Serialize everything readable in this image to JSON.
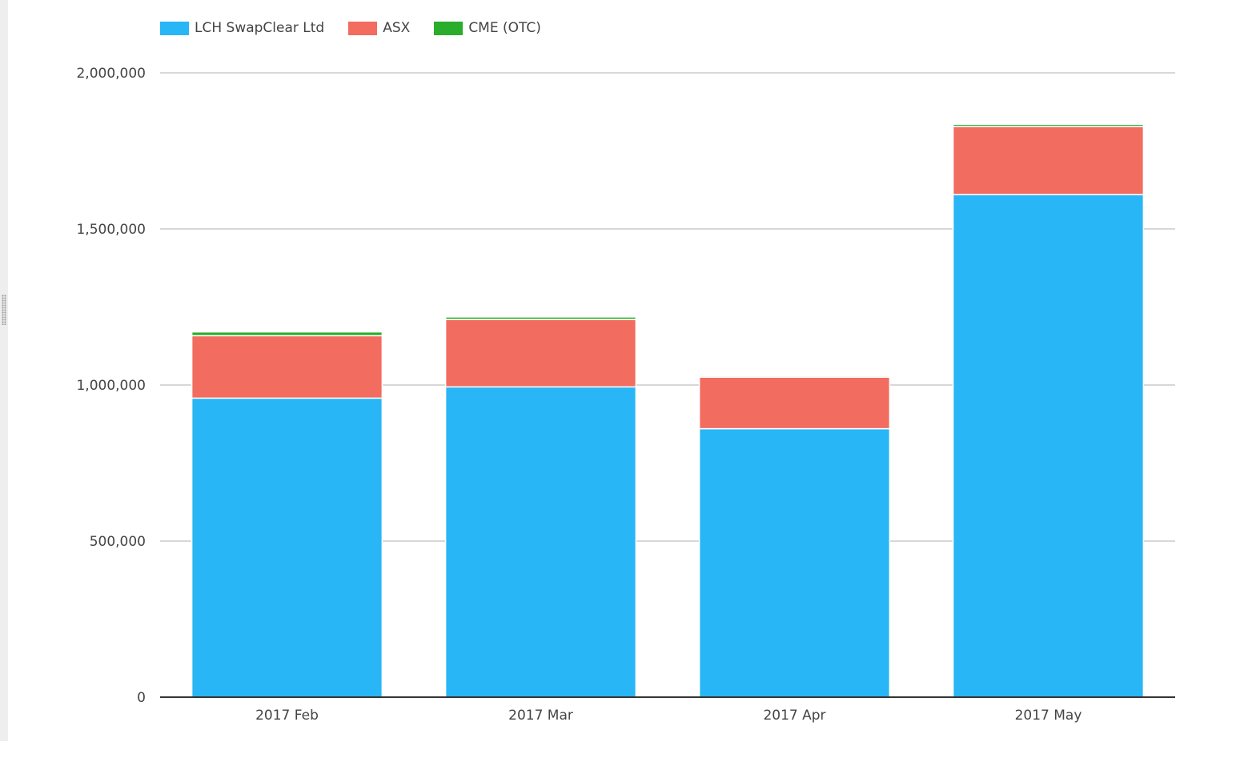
{
  "chart_data": {
    "type": "bar",
    "stacked": true,
    "categories": [
      "2017 Feb",
      "2017 Mar",
      "2017 Apr",
      "2017 May"
    ],
    "series": [
      {
        "name": "LCH SwapClear Ltd",
        "color": "#29b6f6",
        "values": [
          958000,
          994000,
          860000,
          1610000
        ]
      },
      {
        "name": "ASX",
        "color": "#f26c5f",
        "values": [
          200000,
          216000,
          165000,
          218000
        ]
      },
      {
        "name": "CME (OTC)",
        "color": "#2aad2a",
        "values": [
          12000,
          8000,
          4000,
          7000
        ]
      }
    ],
    "yticks": [
      "0",
      "500,000",
      "1,000,000",
      "1,500,000",
      "2,000,000"
    ],
    "ylim": [
      0,
      2000000
    ],
    "grid": true,
    "legend_position": "top-left",
    "xlabel": "",
    "ylabel": ""
  }
}
